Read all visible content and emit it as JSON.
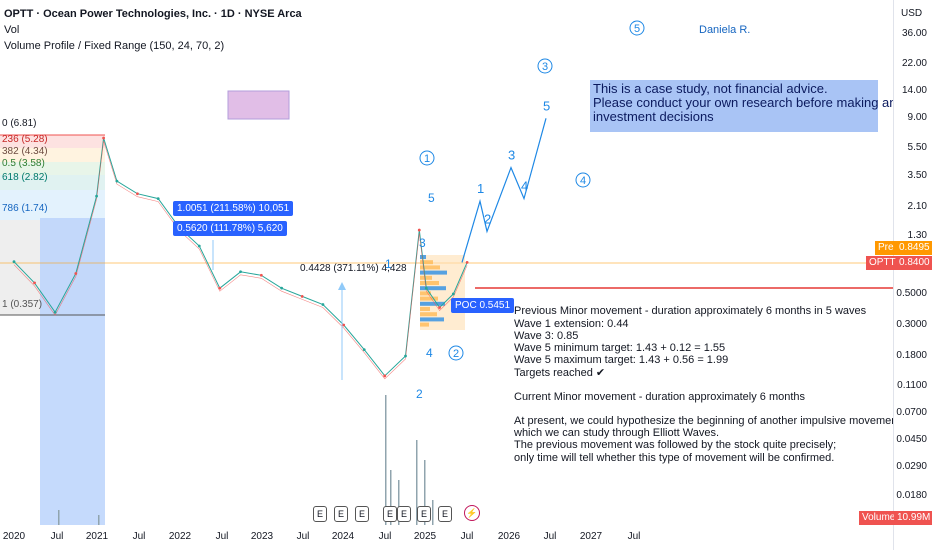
{
  "header": {
    "symbol_line": "OPTT · Ocean Power Technologies, Inc. · 1D · NYSE Arca",
    "vol": "Vol",
    "volume_profile": "Volume Profile / Fixed Range (150, 24, 70, 2)"
  },
  "author": "Daniela R.",
  "disclaimer": [
    "This is a case study, not financial advice.",
    "Please conduct your own research before making any",
    "investment decisions"
  ],
  "notes": [
    "Previous Minor movement - duration approximately 6 months in 5 waves",
    "Wave 1 extension: 0.44",
    "Wave 3: 0.85",
    "Wave 5 minimum target: 1.43 + 0.12 = 1.55",
    "Wave 5 maximum target: 1.43 + 0.56 = 1.99",
    "Targets reached ✔",
    "",
    "Current Minor movement - duration approximately 6 months",
    "",
    "At present, we could hypothesize the beginning of another impulsive movement,",
    "which we can study through Elliott Waves.",
    "The previous movement was followed by the stock quite precisely;",
    "only time will tell whether this type of movement will be confirmed."
  ],
  "fib_labels": [
    "0 (6.81)",
    "236 (5.28)",
    "382 (4.34)",
    "0.5 (3.58)",
    "618 (2.82)",
    "786 (1.74)",
    "1 (0.357)"
  ],
  "measure_labels": {
    "m1": "1.0051 (211.58%) 10,051",
    "m2": "0.5620 (111.78%) 5,620",
    "m3": "0.4428 (371.11%) 4,428",
    "poc": "POC 0.5451"
  },
  "wave_labels": {
    "circled": [
      "1",
      "2",
      "3",
      "4",
      "5"
    ],
    "minor": [
      "1",
      "2",
      "3",
      "4",
      "5"
    ]
  },
  "price_axis": {
    "currency": "USD",
    "ticks": [
      "36.00",
      "22.00",
      "14.00",
      "9.00",
      "5.50",
      "3.50",
      "2.10",
      "1.30",
      "0.5000",
      "0.3000",
      "0.1800",
      "0.1100",
      "0.0700",
      "0.0450",
      "0.0290",
      "0.0180"
    ],
    "pre_label": "Pre",
    "pre_value": "0.8495",
    "last_label": "OPTT",
    "last_value": "0.8400",
    "volume_label": "Volume",
    "volume_value": "10.99M"
  },
  "time_axis": [
    "2020",
    "Jul",
    "2021",
    "Jul",
    "2022",
    "Jul",
    "2023",
    "Jul",
    "2024",
    "Jul",
    "2025",
    "Jul",
    "2026",
    "Jul",
    "2027",
    "Jul"
  ],
  "events": [
    "E",
    "E",
    "E",
    "E",
    "E",
    "E",
    "E"
  ],
  "colors": {
    "up": "#26a69a",
    "down": "#ef5350",
    "wave": "#1e88e5",
    "fib_red": "#f28b82",
    "fib_green": "#a5d6a7",
    "fib_blue": "#90caf9"
  },
  "chart_data": {
    "type": "line",
    "title": "OPTT · Ocean Power Technologies, Inc. · 1D · NYSE Arca",
    "xlabel": "",
    "ylabel": "",
    "y_scale": "log",
    "ylim": [
      0.015,
      50
    ],
    "x": [
      "2020-01",
      "2020-04",
      "2020-07",
      "2020-10",
      "2021-01",
      "2021-02",
      "2021-04",
      "2021-07",
      "2021-10",
      "2022-01",
      "2022-04",
      "2022-07",
      "2022-10",
      "2023-01",
      "2023-04",
      "2023-07",
      "2023-10",
      "2024-01",
      "2024-04",
      "2024-07",
      "2024-10",
      "2024-12",
      "2025-01",
      "2025-03",
      "2025-05",
      "2025-07"
    ],
    "series": [
      {
        "values": [
          0.85,
          0.6,
          0.37,
          0.7,
          2.5,
          6.5,
          3.2,
          2.6,
          2.4,
          1.5,
          1.1,
          0.55,
          0.72,
          0.68,
          0.55,
          0.48,
          0.42,
          0.3,
          0.2,
          0.13,
          0.18,
          1.43,
          0.55,
          0.4,
          0.5,
          0.84
        ]
      }
    ],
    "projection": [
      {
        "label": "1",
        "value": 2.3
      },
      {
        "label": "2",
        "value": 1.4
      },
      {
        "label": "3",
        "value": 4.0
      },
      {
        "label": "4",
        "value": 2.4
      },
      {
        "label": "5",
        "value": 9.0
      }
    ]
  }
}
